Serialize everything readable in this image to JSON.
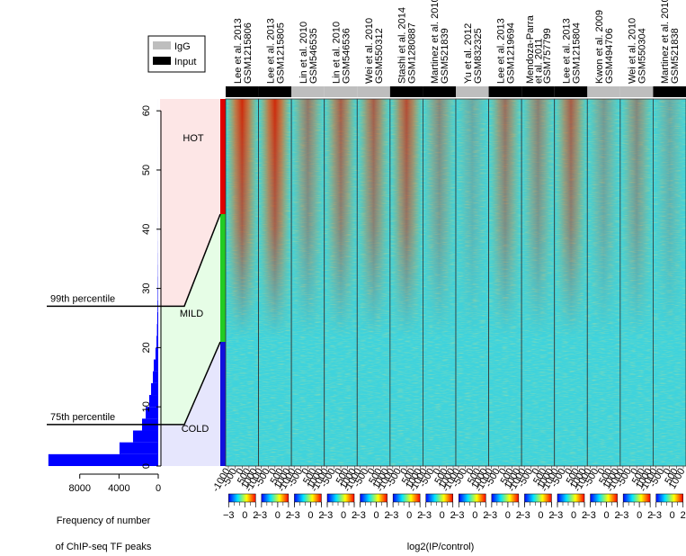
{
  "chart_data": [
    {
      "type": "histogram",
      "orientation": "horizontal",
      "color": "#0000ff",
      "bins": [
        0,
        2,
        4,
        6,
        8,
        10,
        12,
        14,
        16,
        18,
        20,
        22,
        24,
        26,
        28,
        30,
        32,
        34,
        36,
        38,
        40,
        42,
        44,
        46,
        48,
        50,
        52,
        54,
        56,
        58,
        60,
        62
      ],
      "values": [
        11200,
        3950,
        2570,
        1650,
        1280,
        920,
        730,
        550,
        460,
        280,
        180,
        130,
        100,
        70,
        50,
        35,
        25,
        18,
        12,
        8,
        6,
        5,
        4,
        3,
        3,
        2,
        2,
        1,
        1,
        1,
        1
      ],
      "xlim": [
        0,
        11000
      ],
      "xticks": [
        0,
        4000,
        8000
      ],
      "ylim": [
        0,
        62
      ],
      "yticks": [
        0,
        10,
        20,
        30,
        40,
        50,
        60
      ],
      "xlabel": [
        "Frequency of number",
        "of ChIP-seq TF peaks"
      ],
      "annotations": [
        {
          "label": "99th percentile",
          "value": 27
        },
        {
          "label": "75th percentile",
          "value": 7
        }
      ],
      "regions": [
        {
          "label": "HOT",
          "color": "#fde6e6",
          "bar": "#e00000"
        },
        {
          "label": "MILD",
          "color": "#e6fde6",
          "bar": "#22cc22"
        },
        {
          "label": "COLD",
          "color": "#e6e6fd",
          "bar": "#1010dd"
        }
      ]
    },
    {
      "type": "heatmap",
      "legend": [
        {
          "name": "IgG",
          "color": "#bebebe"
        },
        {
          "name": "Input",
          "color": "#000000"
        }
      ],
      "columns": [
        {
          "label": [
            "Lee et al. 2013",
            "GSM1215806"
          ],
          "control": 1
        },
        {
          "label": [
            "Lee et al. 2013",
            "GSM1215805"
          ],
          "control": 1
        },
        {
          "label": [
            "Lin et al. 2010",
            "GSM546535"
          ],
          "control": 0
        },
        {
          "label": [
            "Lin et al. 2010",
            "GSM546536"
          ],
          "control": 0
        },
        {
          "label": [
            "Wei et al. 2010",
            "GSM550312"
          ],
          "control": 0
        },
        {
          "label": [
            "Stashi et al. 2014",
            "GSM1280887"
          ],
          "control": 1
        },
        {
          "label": [
            "Martinez et al. 2010",
            "GSM521839"
          ],
          "control": 1
        },
        {
          "label": [
            "Yu et al. 2012",
            "GSM832325"
          ],
          "control": 0
        },
        {
          "label": [
            "Lee et al. 2013",
            "GSM1219694"
          ],
          "control": 1
        },
        {
          "label": [
            "Mendoza-Parra",
            "et al. 2011",
            "GSM757799"
          ],
          "control": 1
        },
        {
          "label": [
            "Lee et al. 2013",
            "GSM1215804"
          ],
          "control": 1
        },
        {
          "label": [
            "Kwon et al. 2009",
            "GSM494706"
          ],
          "control": 0
        },
        {
          "label": [
            "Wei et al. 2010",
            "GSM550304"
          ],
          "control": 0
        },
        {
          "label": [
            "Martinez et al. 2010",
            "GSM521838"
          ],
          "control": 1
        }
      ],
      "xlim": [
        -1000,
        1000
      ],
      "xticks": [
        -1000,
        -500,
        0,
        500,
        1000
      ],
      "clim": [
        -3,
        2
      ],
      "cticks": [
        {
          "value": -3,
          "label": "−3"
        },
        0,
        2
      ],
      "colorscale": [
        "#0000ff",
        "#00e5ff",
        "#ffff00",
        "#ff0000"
      ],
      "xlabel": "log2(IP/control)"
    }
  ]
}
